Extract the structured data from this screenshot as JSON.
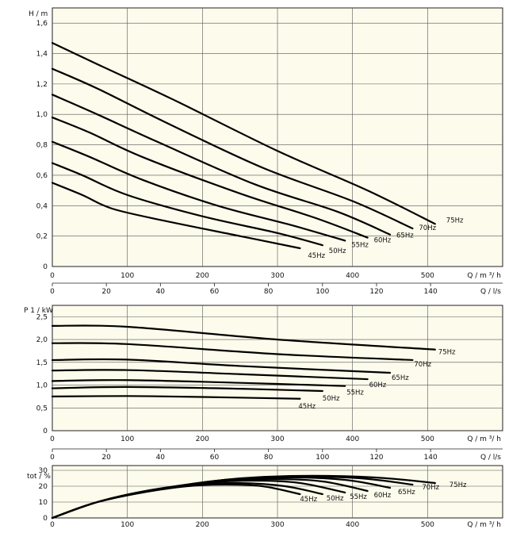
{
  "chart_data": [
    {
      "type": "line",
      "ylabel": "H / m",
      "xlabel": "Q / m ³/ h",
      "xlim": [
        0,
        600
      ],
      "ylim": [
        0,
        1.7
      ],
      "x_ticks": [
        "0",
        "100",
        "200",
        "300",
        "400",
        "500"
      ],
      "y_ticks": [
        "0",
        "0,2",
        "0,4",
        "0,6",
        "0,8",
        "1,0",
        "1,2",
        "1,4",
        "1,6"
      ],
      "x2label": "Q / l/s",
      "x2_ticks": [
        "0",
        "20",
        "40",
        "60",
        "80",
        "100",
        "120",
        "140"
      ],
      "grid": true,
      "series": [
        {
          "name": "45Hz",
          "points": [
            [
              0,
              0.55
            ],
            [
              40,
              0.47
            ],
            [
              80,
              0.38
            ],
            [
              150,
              0.3
            ],
            [
              250,
              0.2
            ],
            [
              330,
              0.12
            ]
          ]
        },
        {
          "name": "50Hz",
          "points": [
            [
              0,
              0.68
            ],
            [
              40,
              0.6
            ],
            [
              100,
              0.47
            ],
            [
              200,
              0.33
            ],
            [
              300,
              0.22
            ],
            [
              360,
              0.14
            ]
          ]
        },
        {
          "name": "55Hz",
          "points": [
            [
              0,
              0.82
            ],
            [
              50,
              0.72
            ],
            [
              120,
              0.57
            ],
            [
              220,
              0.4
            ],
            [
              320,
              0.27
            ],
            [
              390,
              0.17
            ]
          ]
        },
        {
          "name": "60Hz",
          "points": [
            [
              0,
              0.98
            ],
            [
              50,
              0.88
            ],
            [
              120,
              0.72
            ],
            [
              250,
              0.48
            ],
            [
              350,
              0.32
            ],
            [
              420,
              0.19
            ]
          ]
        },
        {
          "name": "65Hz",
          "points": [
            [
              0,
              1.13
            ],
            [
              60,
              1.0
            ],
            [
              140,
              0.82
            ],
            [
              270,
              0.54
            ],
            [
              380,
              0.36
            ],
            [
              450,
              0.21
            ]
          ]
        },
        {
          "name": "70Hz",
          "points": [
            [
              0,
              1.3
            ],
            [
              60,
              1.17
            ],
            [
              150,
              0.95
            ],
            [
              280,
              0.65
            ],
            [
              400,
              0.43
            ],
            [
              480,
              0.25
            ]
          ]
        },
        {
          "name": "75Hz",
          "points": [
            [
              0,
              1.47
            ],
            [
              60,
              1.33
            ],
            [
              160,
              1.1
            ],
            [
              300,
              0.76
            ],
            [
              420,
              0.5
            ],
            [
              510,
              0.28
            ]
          ]
        }
      ]
    },
    {
      "type": "line",
      "ylabel": "P 1 / kW",
      "xlabel": "Q / m ³/ h",
      "xlim": [
        0,
        600
      ],
      "ylim": [
        0,
        2.75
      ],
      "x_ticks": [
        "0",
        "100",
        "200",
        "300",
        "400",
        "500"
      ],
      "y_ticks": [
        "0",
        "0,5",
        "1,0",
        "1,5",
        "2,0",
        "2,5"
      ],
      "x2label": "Q / l/s",
      "x2_ticks": [
        "0",
        "20",
        "40",
        "60",
        "80",
        "100",
        "120",
        "140"
      ],
      "grid": true,
      "series": [
        {
          "name": "45Hz",
          "points": [
            [
              0,
              0.75
            ],
            [
              100,
              0.76
            ],
            [
              200,
              0.74
            ],
            [
              330,
              0.7
            ]
          ]
        },
        {
          "name": "50Hz",
          "points": [
            [
              0,
              0.93
            ],
            [
              100,
              0.96
            ],
            [
              250,
              0.92
            ],
            [
              360,
              0.87
            ]
          ]
        },
        {
          "name": "55Hz",
          "points": [
            [
              0,
              1.09
            ],
            [
              100,
              1.11
            ],
            [
              250,
              1.05
            ],
            [
              390,
              0.98
            ]
          ]
        },
        {
          "name": "60Hz",
          "points": [
            [
              0,
              1.32
            ],
            [
              100,
              1.33
            ],
            [
              250,
              1.24
            ],
            [
              420,
              1.13
            ]
          ]
        },
        {
          "name": "65Hz",
          "points": [
            [
              0,
              1.55
            ],
            [
              100,
              1.56
            ],
            [
              250,
              1.42
            ],
            [
              450,
              1.27
            ]
          ]
        },
        {
          "name": "70Hz",
          "points": [
            [
              0,
              1.92
            ],
            [
              100,
              1.9
            ],
            [
              300,
              1.68
            ],
            [
              480,
              1.55
            ]
          ]
        },
        {
          "name": "75Hz",
          "points": [
            [
              0,
              2.3
            ],
            [
              100,
              2.28
            ],
            [
              300,
              2.0
            ],
            [
              510,
              1.78
            ]
          ]
        }
      ]
    },
    {
      "type": "line",
      "ylabel": "tot / %",
      "xlabel": "Q / m ³/ h",
      "xlim": [
        0,
        600
      ],
      "ylim": [
        0,
        33
      ],
      "x_ticks": [
        "0",
        "100",
        "200",
        "300",
        "400",
        "500"
      ],
      "y_ticks": [
        "0",
        "10",
        "20",
        "30"
      ],
      "x2_ticks": [
        "0",
        "20",
        "40",
        "60",
        "80",
        "100",
        "120",
        "140"
      ],
      "grid": true,
      "series": [
        {
          "name": "45Hz",
          "points": [
            [
              0,
              0
            ],
            [
              60,
              10
            ],
            [
              120,
              16
            ],
            [
              180,
              20
            ],
            [
              230,
              21
            ],
            [
              280,
              20
            ],
            [
              330,
              15
            ]
          ]
        },
        {
          "name": "50Hz",
          "points": [
            [
              0,
              0
            ],
            [
              60,
              10
            ],
            [
              120,
              16.5
            ],
            [
              190,
              21
            ],
            [
              250,
              22
            ],
            [
              310,
              20
            ],
            [
              360,
              15
            ]
          ]
        },
        {
          "name": "55Hz",
          "points": [
            [
              0,
              0
            ],
            [
              60,
              10
            ],
            [
              130,
              17
            ],
            [
              200,
              22
            ],
            [
              270,
              23.5
            ],
            [
              330,
              22
            ],
            [
              390,
              16
            ]
          ]
        },
        {
          "name": "60Hz",
          "points": [
            [
              0,
              0
            ],
            [
              60,
              10
            ],
            [
              130,
              17.5
            ],
            [
              210,
              22.5
            ],
            [
              290,
              24.5
            ],
            [
              360,
              23
            ],
            [
              420,
              17
            ]
          ]
        },
        {
          "name": "65Hz",
          "points": [
            [
              0,
              0
            ],
            [
              60,
              10
            ],
            [
              140,
              18
            ],
            [
              220,
              23
            ],
            [
              310,
              25.5
            ],
            [
              390,
              24
            ],
            [
              450,
              19
            ]
          ]
        },
        {
          "name": "70Hz",
          "points": [
            [
              0,
              0
            ],
            [
              60,
              10
            ],
            [
              140,
              18
            ],
            [
              230,
              24
            ],
            [
              320,
              26
            ],
            [
              410,
              25
            ],
            [
              480,
              21
            ]
          ]
        },
        {
          "name": "75Hz",
          "points": [
            [
              0,
              0
            ],
            [
              60,
              10
            ],
            [
              140,
              18
            ],
            [
              240,
              24.5
            ],
            [
              330,
              26.5
            ],
            [
              430,
              25.5
            ],
            [
              510,
              22
            ]
          ]
        }
      ]
    }
  ]
}
